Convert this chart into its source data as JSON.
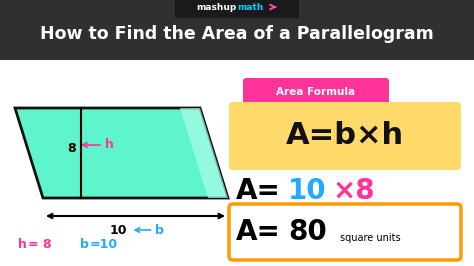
{
  "title": "How to Find the Area of a Parallelogram",
  "bg_dark": "#303030",
  "bg_white": "#ffffff",
  "title_color": "#ffffff",
  "logo_mashup_color": "#ffffff",
  "logo_math_color": "#00ccff",
  "logo_arrow_color": "#ff44aa",
  "logo_bg": "#1a1a1a",
  "area_formula_label": "Area Formula",
  "area_formula_label_bg": "#ff3399",
  "formula_box_bg": "#ffd96a",
  "formula_text": "A=b×h",
  "formula_color": "#111111",
  "step2_color_black": "#111111",
  "step2_color_blue": "#22aaff",
  "step2_color_pink": "#ff3399",
  "result_box_border": "#ff9900",
  "para_fill": "#5ef5cc",
  "para_stroke": "#111111",
  "height_arrow_color": "#ff3399",
  "h_label_color": "#ff3399",
  "b_label_color": "#22aaff"
}
